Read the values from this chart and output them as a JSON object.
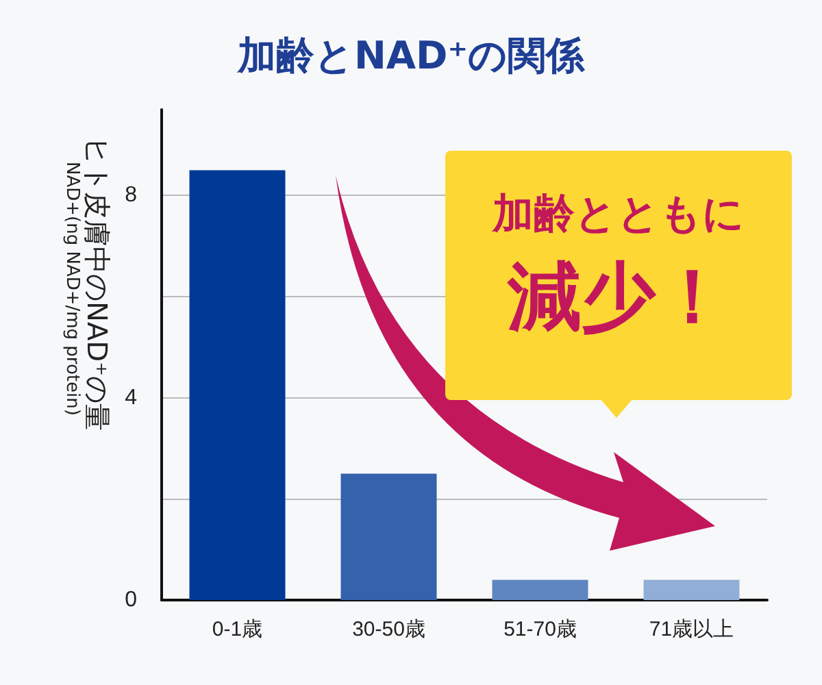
{
  "chart_data": {
    "type": "bar",
    "title": "加齢とNAD⁺の関係",
    "ylabel": "ヒト皮膚中のNAD⁺の量\nNAD+(ng NAD+/mg protein)",
    "categories": [
      "0-1歳",
      "30-50歳",
      "51-70歳",
      "71歳以上"
    ],
    "values": [
      8.5,
      2.5,
      0.4,
      0.4
    ],
    "colors": [
      "#003a96",
      "#3462ad",
      "#5f86c0",
      "#91aed6"
    ],
    "ylim": [
      0,
      9.7
    ],
    "yticks": [
      0,
      {
        "value": 2,
        "label": null
      },
      4,
      {
        "value": 6,
        "label": null
      },
      8
    ],
    "grid": "y",
    "annotations": [
      "加齢とともに",
      "減少！"
    ]
  }
}
